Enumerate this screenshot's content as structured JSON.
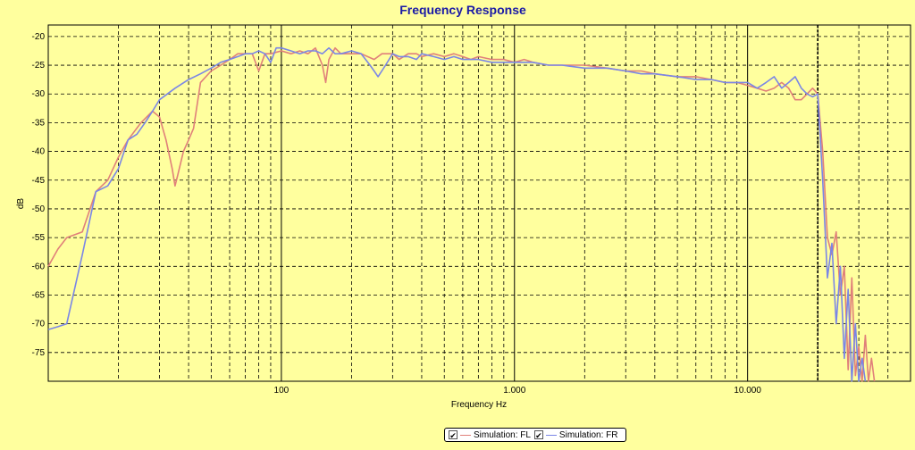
{
  "colors": {
    "background": "#ffff9e",
    "series_fl": "#e0807a",
    "series_fr": "#7a86e6",
    "title": "#1a1aa6"
  },
  "legend": {
    "items": [
      {
        "label": "Simulation: FL",
        "checked": true,
        "check_glyph": "✔"
      },
      {
        "label": "Simulation: FR",
        "checked": true,
        "check_glyph": "✔"
      }
    ]
  },
  "chart_data": {
    "type": "line",
    "title": "Frequency Response",
    "xlabel": "Frequency Hz",
    "ylabel": "dB",
    "xscale": "log",
    "xlim": [
      10,
      50000
    ],
    "ylim": [
      -80,
      -18
    ],
    "x_tick_labels": [
      {
        "value": 100,
        "label": "100"
      },
      {
        "value": 1000,
        "label": "1.000"
      },
      {
        "value": 10000,
        "label": "10.000"
      }
    ],
    "y_ticks": [
      -20,
      -25,
      -30,
      -35,
      -40,
      -45,
      -50,
      -55,
      -60,
      -65,
      -70,
      -75
    ],
    "grid": true,
    "legend_position": "bottom-center",
    "series": [
      {
        "name": "Simulation: FL",
        "points": [
          [
            10,
            -60
          ],
          [
            11,
            -57
          ],
          [
            12,
            -55
          ],
          [
            14,
            -54
          ],
          [
            16,
            -47
          ],
          [
            18,
            -45
          ],
          [
            20,
            -41
          ],
          [
            22,
            -38
          ],
          [
            25,
            -35
          ],
          [
            28,
            -33
          ],
          [
            30,
            -34
          ],
          [
            32,
            -38
          ],
          [
            34,
            -43
          ],
          [
            35,
            -46
          ],
          [
            36,
            -44
          ],
          [
            38,
            -40
          ],
          [
            40,
            -38
          ],
          [
            42,
            -36
          ],
          [
            45,
            -28
          ],
          [
            50,
            -26
          ],
          [
            55,
            -25
          ],
          [
            60,
            -24
          ],
          [
            65,
            -23
          ],
          [
            70,
            -23
          ],
          [
            75,
            -23
          ],
          [
            80,
            -26
          ],
          [
            85,
            -23
          ],
          [
            90,
            -23
          ],
          [
            100,
            -22.5
          ],
          [
            110,
            -23
          ],
          [
            120,
            -22.5
          ],
          [
            130,
            -23
          ],
          [
            140,
            -22
          ],
          [
            150,
            -25
          ],
          [
            155,
            -28
          ],
          [
            160,
            -24
          ],
          [
            170,
            -22
          ],
          [
            180,
            -23
          ],
          [
            200,
            -23
          ],
          [
            220,
            -23
          ],
          [
            250,
            -24
          ],
          [
            270,
            -23
          ],
          [
            300,
            -23
          ],
          [
            320,
            -24
          ],
          [
            350,
            -23
          ],
          [
            380,
            -23
          ],
          [
            400,
            -23.5
          ],
          [
            450,
            -23
          ],
          [
            500,
            -23.5
          ],
          [
            550,
            -23
          ],
          [
            600,
            -23.5
          ],
          [
            650,
            -24
          ],
          [
            700,
            -23.5
          ],
          [
            800,
            -24
          ],
          [
            900,
            -24
          ],
          [
            1000,
            -24.5
          ],
          [
            1100,
            -24
          ],
          [
            1200,
            -24.5
          ],
          [
            1400,
            -25
          ],
          [
            1600,
            -25
          ],
          [
            2000,
            -25
          ],
          [
            2500,
            -25.5
          ],
          [
            3000,
            -26
          ],
          [
            3500,
            -26
          ],
          [
            4000,
            -26.5
          ],
          [
            5000,
            -27
          ],
          [
            6000,
            -27
          ],
          [
            7000,
            -27.5
          ],
          [
            8000,
            -28
          ],
          [
            9000,
            -28
          ],
          [
            10000,
            -28.5
          ],
          [
            11000,
            -29
          ],
          [
            12000,
            -29.5
          ],
          [
            13000,
            -29
          ],
          [
            14000,
            -28
          ],
          [
            15000,
            -29
          ],
          [
            16000,
            -31
          ],
          [
            17000,
            -31
          ],
          [
            18000,
            -30
          ],
          [
            19000,
            -29
          ],
          [
            20000,
            -30
          ],
          [
            21000,
            -40
          ],
          [
            22000,
            -55
          ],
          [
            23000,
            -58
          ],
          [
            24000,
            -54
          ],
          [
            25000,
            -65
          ],
          [
            26000,
            -60
          ],
          [
            27000,
            -78
          ],
          [
            28000,
            -62
          ],
          [
            29000,
            -79
          ],
          [
            30000,
            -74
          ],
          [
            31000,
            -80
          ],
          [
            32000,
            -72
          ],
          [
            33000,
            -80
          ],
          [
            34000,
            -76
          ],
          [
            35000,
            -80
          ]
        ]
      },
      {
        "name": "Simulation: FR",
        "points": [
          [
            10,
            -71
          ],
          [
            11,
            -70.5
          ],
          [
            12,
            -70
          ],
          [
            14,
            -58
          ],
          [
            16,
            -47
          ],
          [
            18,
            -46
          ],
          [
            20,
            -43
          ],
          [
            22,
            -38
          ],
          [
            24,
            -37
          ],
          [
            26,
            -35
          ],
          [
            28,
            -33
          ],
          [
            30,
            -31
          ],
          [
            35,
            -29
          ],
          [
            40,
            -27.5
          ],
          [
            45,
            -26.5
          ],
          [
            50,
            -25.5
          ],
          [
            55,
            -24.5
          ],
          [
            60,
            -24
          ],
          [
            65,
            -23.5
          ],
          [
            70,
            -23
          ],
          [
            75,
            -23
          ],
          [
            80,
            -22.5
          ],
          [
            85,
            -23
          ],
          [
            90,
            -24.5
          ],
          [
            95,
            -22
          ],
          [
            100,
            -22
          ],
          [
            110,
            -22.5
          ],
          [
            120,
            -23
          ],
          [
            130,
            -22.5
          ],
          [
            140,
            -22.5
          ],
          [
            150,
            -23
          ],
          [
            160,
            -22
          ],
          [
            170,
            -23
          ],
          [
            180,
            -23
          ],
          [
            200,
            -22.5
          ],
          [
            220,
            -23
          ],
          [
            240,
            -25
          ],
          [
            250,
            -26
          ],
          [
            260,
            -27
          ],
          [
            280,
            -25
          ],
          [
            300,
            -23
          ],
          [
            320,
            -23.5
          ],
          [
            350,
            -23.5
          ],
          [
            380,
            -24
          ],
          [
            400,
            -23
          ],
          [
            450,
            -23.5
          ],
          [
            500,
            -24
          ],
          [
            550,
            -23.5
          ],
          [
            600,
            -24
          ],
          [
            650,
            -24
          ],
          [
            700,
            -24
          ],
          [
            800,
            -24.5
          ],
          [
            900,
            -24.5
          ],
          [
            1000,
            -24.5
          ],
          [
            1200,
            -24.5
          ],
          [
            1400,
            -25
          ],
          [
            1600,
            -25
          ],
          [
            2000,
            -25.5
          ],
          [
            2500,
            -25.5
          ],
          [
            3000,
            -26
          ],
          [
            3500,
            -26.5
          ],
          [
            4000,
            -26.5
          ],
          [
            5000,
            -27
          ],
          [
            6000,
            -27.5
          ],
          [
            7000,
            -27.5
          ],
          [
            8000,
            -28
          ],
          [
            9000,
            -28
          ],
          [
            10000,
            -28
          ],
          [
            11000,
            -29
          ],
          [
            12000,
            -28
          ],
          [
            13000,
            -27
          ],
          [
            14000,
            -29
          ],
          [
            15000,
            -28
          ],
          [
            16000,
            -27
          ],
          [
            17000,
            -29
          ],
          [
            18000,
            -30
          ],
          [
            19000,
            -30.5
          ],
          [
            20000,
            -30
          ],
          [
            21000,
            -45
          ],
          [
            22000,
            -62
          ],
          [
            23000,
            -56
          ],
          [
            24000,
            -70
          ],
          [
            25000,
            -60
          ],
          [
            26000,
            -76
          ],
          [
            27000,
            -64
          ],
          [
            28000,
            -80
          ],
          [
            29000,
            -70
          ],
          [
            30000,
            -80
          ],
          [
            31000,
            -76
          ],
          [
            32000,
            -80
          ]
        ]
      }
    ]
  }
}
